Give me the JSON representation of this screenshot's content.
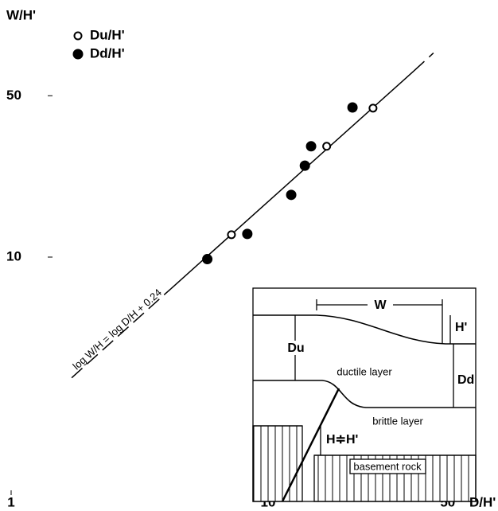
{
  "chart_data": {
    "type": "scatter",
    "xlabel": "D/H'",
    "ylabel": "W/H'",
    "log_x": true,
    "log_y": true,
    "xlim": [
      1,
      70
    ],
    "ylim": [
      1,
      100
    ],
    "xticks": [
      1,
      10,
      50
    ],
    "yticks": [
      10,
      50
    ],
    "legend": "top-left",
    "series": [
      {
        "name": "Du/H'",
        "color": "#000000",
        "filled": false,
        "x": [
          7.2,
          16.9,
          25.6
        ],
        "values": [
          12.5,
          30.2,
          44.2
        ]
      },
      {
        "name": "Dd/H'",
        "color": "#000000",
        "filled": true,
        "x": [
          5.8,
          8.3,
          12.3,
          13.9,
          14.7,
          21.3
        ],
        "values": [
          9.8,
          12.6,
          18.6,
          24.9,
          30.2,
          44.5
        ]
      }
    ],
    "fit_line": {
      "label": "log W/H = log D/H + 0.24",
      "x": [
        1.72,
        4.19,
        36.9,
        44
      ],
      "values": [
        3.0,
        7.3,
        64,
        76.6
      ],
      "dashed_ends": true
    }
  },
  "inset": {
    "w": "W",
    "h_prime": "H'",
    "du": "Du",
    "dd": "Dd",
    "ductile": "ductile layer",
    "brittle": "brittle layer",
    "h_eq": "H≑H'",
    "basement": "basement rock"
  }
}
